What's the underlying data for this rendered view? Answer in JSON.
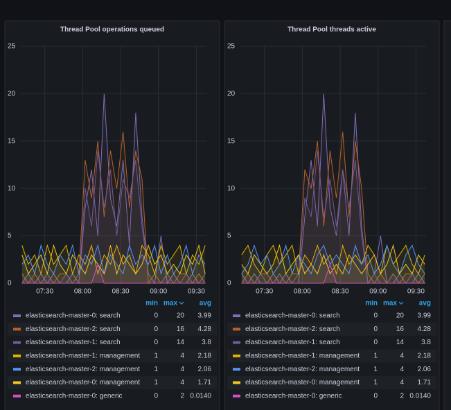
{
  "chart_data": [
    {
      "type": "line",
      "title": "Thread Pool operations queued",
      "x": [
        432,
        437,
        442,
        447,
        452,
        457,
        462,
        467,
        472,
        477,
        482,
        487,
        492,
        497,
        502,
        507,
        512,
        517,
        522,
        527,
        532,
        537,
        542,
        547,
        552,
        557,
        562,
        567,
        572,
        577
      ],
      "xlim": [
        431,
        578
      ],
      "xticks": [
        {
          "value": 450,
          "label": "07:30"
        },
        {
          "value": 480,
          "label": "08:00"
        },
        {
          "value": 510,
          "label": "08:30"
        },
        {
          "value": 540,
          "label": "09:00"
        },
        {
          "value": 570,
          "label": "09:30"
        }
      ],
      "ylim": [
        0,
        25
      ],
      "yticks": [
        0,
        5,
        10,
        15,
        20,
        25
      ],
      "grid": true,
      "legend_columns": [
        "min",
        "max",
        "avg"
      ],
      "series": [
        {
          "name": "elasticsearch-master-0: search",
          "color": "#806eb7",
          "min": 0,
          "max": 20,
          "avg": 3.99,
          "values": [
            0,
            1,
            0,
            1,
            0,
            1,
            0,
            0,
            1,
            0,
            8,
            12,
            5,
            20,
            9,
            6,
            13,
            4,
            18,
            7,
            1,
            0,
            5,
            0,
            1,
            0,
            0,
            1,
            0,
            0
          ]
        },
        {
          "name": "elasticsearch-master-2: search",
          "color": "#b8612a",
          "min": 0,
          "max": 16,
          "avg": 4.28,
          "values": [
            1,
            0,
            1,
            0,
            1,
            0,
            1,
            1,
            0,
            1,
            13,
            9,
            15,
            7,
            14,
            10,
            16,
            8,
            14,
            11,
            0,
            1,
            0,
            1,
            0,
            1,
            1,
            0,
            1,
            0
          ]
        },
        {
          "name": "elasticsearch-master-1: search",
          "color": "#6d5a9c",
          "min": 0,
          "max": 14,
          "avg": 3.8,
          "values": [
            0,
            1,
            0,
            0,
            1,
            0,
            0,
            1,
            0,
            0,
            10,
            6,
            14,
            8,
            12,
            5,
            11,
            9,
            13,
            6,
            1,
            0,
            0,
            1,
            0,
            0,
            1,
            0,
            0,
            1
          ]
        },
        {
          "name": "elasticsearch-master-1: management",
          "color": "#e0b400",
          "min": 1,
          "max": 4,
          "avg": 2.18,
          "values": [
            4,
            2,
            3,
            1,
            4,
            2,
            3,
            4,
            1,
            3,
            2,
            4,
            1,
            3,
            2,
            4,
            2,
            3,
            1,
            4,
            3,
            1,
            4,
            2,
            3,
            4,
            1,
            3,
            2,
            4
          ]
        },
        {
          "name": "elasticsearch-master-2: management",
          "color": "#5794f2",
          "min": 1,
          "max": 4,
          "avg": 2.06,
          "values": [
            2,
            3,
            1,
            4,
            2,
            1,
            3,
            2,
            4,
            1,
            3,
            2,
            4,
            1,
            3,
            2,
            1,
            4,
            2,
            3,
            2,
            4,
            1,
            3,
            1,
            2,
            4,
            1,
            3,
            2
          ]
        },
        {
          "name": "elasticsearch-master-0: management",
          "color": "#f2c520",
          "min": 1,
          "max": 4,
          "avg": 1.71,
          "values": [
            3,
            1,
            2,
            3,
            1,
            4,
            2,
            1,
            3,
            2,
            1,
            3,
            2,
            1,
            4,
            1,
            3,
            2,
            1,
            2,
            4,
            2,
            3,
            1,
            2,
            1,
            3,
            2,
            4,
            1
          ]
        },
        {
          "name": "elasticsearch-master-0: generic",
          "color": "#d44fc4",
          "min": 0,
          "max": 2,
          "avg": 0.014,
          "avg_label": "0.0140",
          "values": [
            0,
            0,
            0,
            0,
            0,
            0,
            0,
            0,
            0,
            0,
            0,
            0,
            2,
            0,
            0,
            0,
            0,
            0,
            0,
            0,
            0,
            0,
            0,
            0,
            0,
            0,
            0,
            0,
            0,
            0
          ]
        }
      ]
    },
    {
      "type": "line",
      "title": "Thread Pool threads active",
      "x": [
        432,
        437,
        442,
        447,
        452,
        457,
        462,
        467,
        472,
        477,
        482,
        487,
        492,
        497,
        502,
        507,
        512,
        517,
        522,
        527,
        532,
        537,
        542,
        547,
        552,
        557,
        562,
        567,
        572,
        577
      ],
      "xlim": [
        431,
        578
      ],
      "xticks": [
        {
          "value": 450,
          "label": "07:30"
        },
        {
          "value": 480,
          "label": "08:00"
        },
        {
          "value": 510,
          "label": "08:30"
        },
        {
          "value": 540,
          "label": "09:00"
        },
        {
          "value": 570,
          "label": "09:30"
        }
      ],
      "ylim": [
        0,
        25
      ],
      "yticks": [
        0,
        5,
        10,
        15,
        20,
        25
      ],
      "grid": true,
      "legend_columns": [
        "min",
        "max",
        "avg"
      ],
      "series": [
        {
          "name": "elasticsearch-master-0: search",
          "color": "#806eb7",
          "min": 0,
          "max": 20,
          "avg": 3.99,
          "values": [
            1,
            0,
            1,
            0,
            0,
            1,
            0,
            1,
            0,
            0,
            7,
            13,
            6,
            20,
            8,
            5,
            12,
            5,
            18,
            6,
            0,
            1,
            5,
            0,
            0,
            1,
            0,
            0,
            1,
            0
          ]
        },
        {
          "name": "elasticsearch-master-2: search",
          "color": "#b8612a",
          "min": 0,
          "max": 16,
          "avg": 4.28,
          "values": [
            0,
            1,
            0,
            1,
            1,
            0,
            1,
            0,
            1,
            1,
            12,
            10,
            15,
            6,
            14,
            9,
            16,
            7,
            15,
            10,
            1,
            0,
            1,
            0,
            1,
            0,
            1,
            1,
            0,
            1
          ]
        },
        {
          "name": "elasticsearch-master-1: search",
          "color": "#6d5a9c",
          "min": 0,
          "max": 14,
          "avg": 3.8,
          "values": [
            1,
            0,
            0,
            1,
            0,
            0,
            1,
            0,
            0,
            1,
            9,
            7,
            14,
            7,
            11,
            6,
            12,
            8,
            13,
            5,
            0,
            1,
            0,
            0,
            1,
            0,
            0,
            1,
            0,
            0
          ]
        },
        {
          "name": "elasticsearch-master-1: management",
          "color": "#e0b400",
          "min": 1,
          "max": 4,
          "avg": 2.18,
          "values": [
            3,
            4,
            2,
            1,
            3,
            4,
            2,
            3,
            4,
            1,
            3,
            2,
            4,
            2,
            3,
            1,
            4,
            2,
            3,
            2,
            4,
            3,
            1,
            4,
            2,
            3,
            4,
            2,
            1,
            3
          ]
        },
        {
          "name": "elasticsearch-master-2: management",
          "color": "#5794f2",
          "min": 1,
          "max": 4,
          "avg": 2.06,
          "values": [
            1,
            2,
            4,
            2,
            3,
            1,
            2,
            4,
            1,
            3,
            2,
            1,
            3,
            4,
            2,
            3,
            2,
            1,
            4,
            2,
            3,
            1,
            2,
            4,
            2,
            1,
            3,
            4,
            2,
            1
          ]
        },
        {
          "name": "elasticsearch-master-0: management",
          "color": "#f2c520",
          "min": 1,
          "max": 4,
          "avg": 1.71,
          "values": [
            2,
            1,
            3,
            2,
            1,
            2,
            4,
            1,
            2,
            3,
            1,
            2,
            1,
            3,
            1,
            2,
            1,
            3,
            2,
            1,
            2,
            3,
            1,
            2,
            4,
            1,
            2,
            1,
            3,
            2
          ]
        },
        {
          "name": "elasticsearch-master-0: generic",
          "color": "#d44fc4",
          "min": 0,
          "max": 2,
          "avg": 0.014,
          "avg_label": "0.0140",
          "values": [
            0,
            0,
            0,
            0,
            0,
            0,
            0,
            0,
            0,
            0,
            0,
            0,
            0,
            0,
            2,
            0,
            0,
            0,
            0,
            0,
            0,
            0,
            0,
            0,
            0,
            0,
            0,
            0,
            0,
            0
          ]
        }
      ]
    }
  ]
}
